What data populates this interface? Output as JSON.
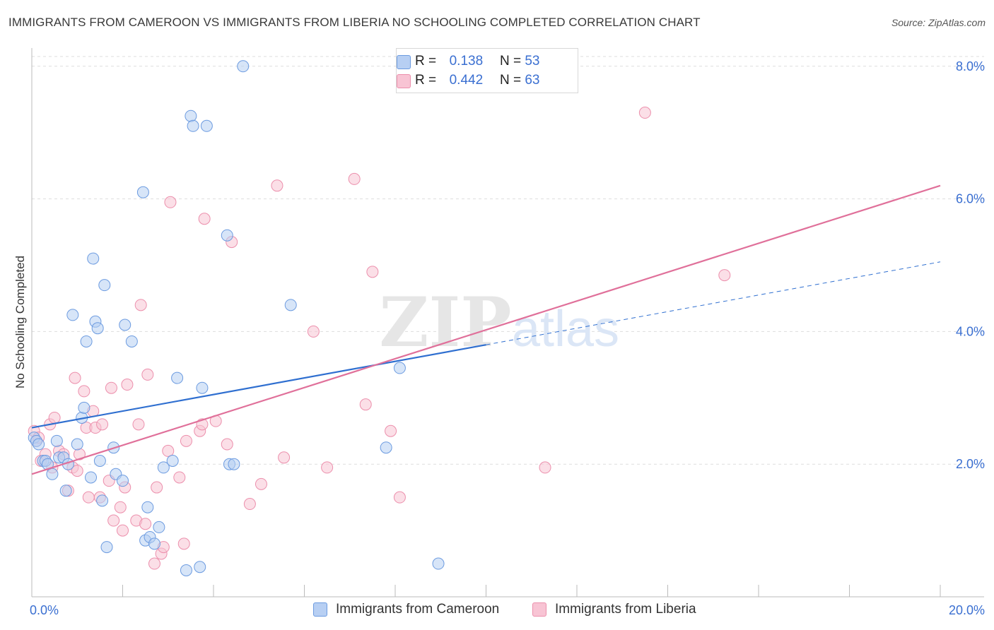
{
  "header": {
    "title": "IMMIGRANTS FROM CAMEROON VS IMMIGRANTS FROM LIBERIA NO SCHOOLING COMPLETED CORRELATION CHART",
    "source": "Source: ZipAtlas.com"
  },
  "legend": {
    "rows": [
      {
        "r_label": "R =",
        "r_value": "0.138",
        "n_label": "N =",
        "n_value": "53"
      },
      {
        "r_label": "R =",
        "r_value": "0.442",
        "n_label": "N =",
        "n_value": "63"
      }
    ]
  },
  "watermark": {
    "zip": "ZIP",
    "atlas": "atlas"
  },
  "colors": {
    "cameroon_fill": "#b7cff3",
    "cameroon_stroke": "#6c9be0",
    "cameroon_line": "#2f6fd0",
    "liberia_fill": "#f8c4d4",
    "liberia_stroke": "#ec8fac",
    "liberia_line": "#e0709a",
    "axis_label": "#3a6fd1",
    "grid": "#dddddd"
  },
  "chart_data": {
    "type": "scatter",
    "title": "IMMIGRANTS FROM CAMEROON VS IMMIGRANTS FROM LIBERIA NO SCHOOLING COMPLETED CORRELATION CHART",
    "xlabel": "",
    "ylabel": "No Schooling Completed",
    "xlim": [
      0,
      20
    ],
    "ylim": [
      0,
      8.2
    ],
    "x_tick_labels": [
      "0.0%",
      "20.0%"
    ],
    "y_ticks": [
      2,
      4,
      6,
      8
    ],
    "y_tick_labels": [
      "2.0%",
      "4.0%",
      "6.0%",
      "8.0%"
    ],
    "grid": true,
    "legend_position": "top-center",
    "series": [
      {
        "name": "Immigrants from Cameroon",
        "r": 0.138,
        "n": 53,
        "trend": {
          "x": [
            0,
            10
          ],
          "y": [
            2.55,
            3.8
          ],
          "dashed_extension": {
            "x": [
              10,
              20
            ],
            "y": [
              3.8,
              5.05
            ]
          }
        },
        "points": [
          [
            0.05,
            2.4
          ],
          [
            0.1,
            2.35
          ],
          [
            0.15,
            2.3
          ],
          [
            0.25,
            2.05
          ],
          [
            0.3,
            2.05
          ],
          [
            0.35,
            2.0
          ],
          [
            0.45,
            1.85
          ],
          [
            0.55,
            2.35
          ],
          [
            0.6,
            2.1
          ],
          [
            0.7,
            2.1
          ],
          [
            0.75,
            1.6
          ],
          [
            0.8,
            2.0
          ],
          [
            0.9,
            4.25
          ],
          [
            1.0,
            2.3
          ],
          [
            1.1,
            2.7
          ],
          [
            1.15,
            2.85
          ],
          [
            1.2,
            3.85
          ],
          [
            1.3,
            1.8
          ],
          [
            1.35,
            5.1
          ],
          [
            1.4,
            4.15
          ],
          [
            1.45,
            4.05
          ],
          [
            1.5,
            2.05
          ],
          [
            1.55,
            1.45
          ],
          [
            1.6,
            4.7
          ],
          [
            1.65,
            0.75
          ],
          [
            1.8,
            2.25
          ],
          [
            1.85,
            1.85
          ],
          [
            2.0,
            1.75
          ],
          [
            2.05,
            4.1
          ],
          [
            2.2,
            3.85
          ],
          [
            2.45,
            6.1
          ],
          [
            2.5,
            0.85
          ],
          [
            2.55,
            1.35
          ],
          [
            2.6,
            0.9
          ],
          [
            2.7,
            0.8
          ],
          [
            2.8,
            1.05
          ],
          [
            2.9,
            1.95
          ],
          [
            3.1,
            2.05
          ],
          [
            3.2,
            3.3
          ],
          [
            3.4,
            0.4
          ],
          [
            3.5,
            7.25
          ],
          [
            3.55,
            7.1
          ],
          [
            3.7,
            0.45
          ],
          [
            3.75,
            3.15
          ],
          [
            3.85,
            7.1
          ],
          [
            4.3,
            5.45
          ],
          [
            4.35,
            2.0
          ],
          [
            4.45,
            2.0
          ],
          [
            4.65,
            8.0
          ],
          [
            5.7,
            4.4
          ],
          [
            7.8,
            2.25
          ],
          [
            8.1,
            3.45
          ],
          [
            8.95,
            0.5
          ]
        ]
      },
      {
        "name": "Immigrants from Liberia",
        "r": 0.442,
        "n": 63,
        "trend": {
          "x": [
            0,
            20
          ],
          "y": [
            1.85,
            6.2
          ]
        },
        "points": [
          [
            0.05,
            2.5
          ],
          [
            0.1,
            2.35
          ],
          [
            0.15,
            2.4
          ],
          [
            0.2,
            2.05
          ],
          [
            0.3,
            2.15
          ],
          [
            0.4,
            2.6
          ],
          [
            0.45,
            1.95
          ],
          [
            0.5,
            2.7
          ],
          [
            0.6,
            2.2
          ],
          [
            0.7,
            2.15
          ],
          [
            0.8,
            1.6
          ],
          [
            0.9,
            1.95
          ],
          [
            0.95,
            3.3
          ],
          [
            1.0,
            1.9
          ],
          [
            1.05,
            2.15
          ],
          [
            1.15,
            3.1
          ],
          [
            1.2,
            2.55
          ],
          [
            1.25,
            1.5
          ],
          [
            1.35,
            2.8
          ],
          [
            1.4,
            2.55
          ],
          [
            1.5,
            1.5
          ],
          [
            1.55,
            2.6
          ],
          [
            1.7,
            1.75
          ],
          [
            1.75,
            3.15
          ],
          [
            1.8,
            1.15
          ],
          [
            1.95,
            1.35
          ],
          [
            2.0,
            1.0
          ],
          [
            2.05,
            1.65
          ],
          [
            2.1,
            3.2
          ],
          [
            2.3,
            1.15
          ],
          [
            2.35,
            2.6
          ],
          [
            2.4,
            4.4
          ],
          [
            2.5,
            1.1
          ],
          [
            2.55,
            3.35
          ],
          [
            2.7,
            0.5
          ],
          [
            2.75,
            1.65
          ],
          [
            2.85,
            0.65
          ],
          [
            2.9,
            0.75
          ],
          [
            3.0,
            2.2
          ],
          [
            3.05,
            5.95
          ],
          [
            3.25,
            1.8
          ],
          [
            3.35,
            0.8
          ],
          [
            3.4,
            2.35
          ],
          [
            3.7,
            2.5
          ],
          [
            3.75,
            2.6
          ],
          [
            3.8,
            5.7
          ],
          [
            4.05,
            2.65
          ],
          [
            4.3,
            2.3
          ],
          [
            4.4,
            5.35
          ],
          [
            4.8,
            1.4
          ],
          [
            5.05,
            1.7
          ],
          [
            5.4,
            6.2
          ],
          [
            5.55,
            2.1
          ],
          [
            6.2,
            4.0
          ],
          [
            6.5,
            1.95
          ],
          [
            7.1,
            6.3
          ],
          [
            7.35,
            2.9
          ],
          [
            7.5,
            4.9
          ],
          [
            7.9,
            2.5
          ],
          [
            8.1,
            1.5
          ],
          [
            11.3,
            1.95
          ],
          [
            13.5,
            7.3
          ],
          [
            15.25,
            4.85
          ]
        ]
      }
    ]
  },
  "bottom_legend": {
    "cameroon_label": "Immigrants from Cameroon",
    "liberia_label": "Immigrants from Liberia"
  }
}
